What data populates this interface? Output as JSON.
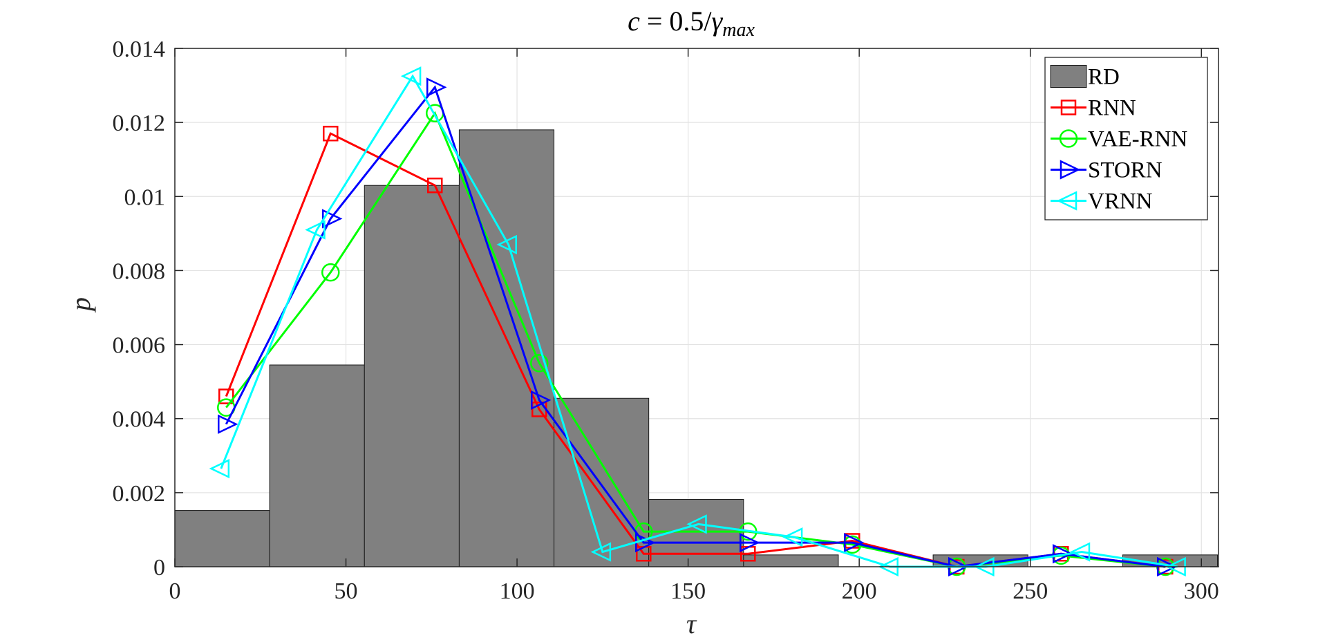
{
  "chart_data": {
    "type": "bar",
    "title": "c = 0.5/γmax",
    "title_parts": {
      "lhs": "c",
      "eq": " = 0.5/",
      "gamma": "γ",
      "sub": "max"
    },
    "xlabel": "τ",
    "ylabel": "p",
    "xlim": [
      0,
      305
    ],
    "ylim": [
      0,
      0.014
    ],
    "xticks": [
      0,
      50,
      100,
      150,
      200,
      250,
      300
    ],
    "yticks": [
      0,
      0.002,
      0.004,
      0.006,
      0.008,
      0.01,
      0.012,
      0.014
    ],
    "ytick_labels": [
      "0",
      "0.002",
      "0.004",
      "0.006",
      "0.008",
      "0.01",
      "0.012",
      "0.014"
    ],
    "grid": true,
    "legend_position": "top-right",
    "histogram": {
      "name": "RD",
      "color": "#808080",
      "bin_edges": [
        0,
        27.7,
        55.4,
        83.1,
        110.8,
        138.5,
        166.2,
        193.9,
        221.6,
        249.3,
        277,
        304.7
      ],
      "values": [
        0.00152,
        0.00545,
        0.0103,
        0.0118,
        0.00455,
        0.00182,
        0.00032,
        0.0,
        0.00032,
        0.0,
        0.00032
      ]
    },
    "series": [
      {
        "name": "RNN",
        "color": "#ff0000",
        "marker": "square",
        "x": [
          15,
          45.5,
          76,
          106.5,
          137,
          167.5,
          198,
          228.5,
          259,
          289.5
        ],
        "y": [
          0.0046,
          0.0117,
          0.0103,
          0.00425,
          0.00035,
          0.00035,
          0.0007,
          0.0,
          0.00035,
          0.0
        ]
      },
      {
        "name": "VAE-RNN",
        "color": "#00ff00",
        "marker": "circle",
        "x": [
          15,
          45.5,
          76,
          106.5,
          137,
          167.5,
          198,
          228.5,
          259,
          289.5
        ],
        "y": [
          0.0043,
          0.00795,
          0.01225,
          0.0055,
          0.00095,
          0.00095,
          0.0006,
          0.0,
          0.0003,
          0.0
        ]
      },
      {
        "name": "STORN",
        "color": "#0000ff",
        "marker": "triangle-right",
        "x": [
          15,
          45.5,
          76,
          106.5,
          137,
          167.5,
          198,
          228.5,
          259,
          289.5
        ],
        "y": [
          0.00385,
          0.0094,
          0.01295,
          0.0045,
          0.00065,
          0.00065,
          0.00065,
          0.0,
          0.00035,
          0.0
        ]
      },
      {
        "name": "VRNN",
        "color": "#00ffff",
        "marker": "triangle-left",
        "x": [
          13.5,
          41.5,
          69.5,
          97.5,
          125,
          153,
          181,
          209,
          237,
          265,
          293
        ],
        "y": [
          0.00265,
          0.0091,
          0.01325,
          0.0087,
          0.0004,
          0.00115,
          0.0008,
          0.0,
          0.0,
          0.0004,
          0.0
        ]
      }
    ]
  }
}
